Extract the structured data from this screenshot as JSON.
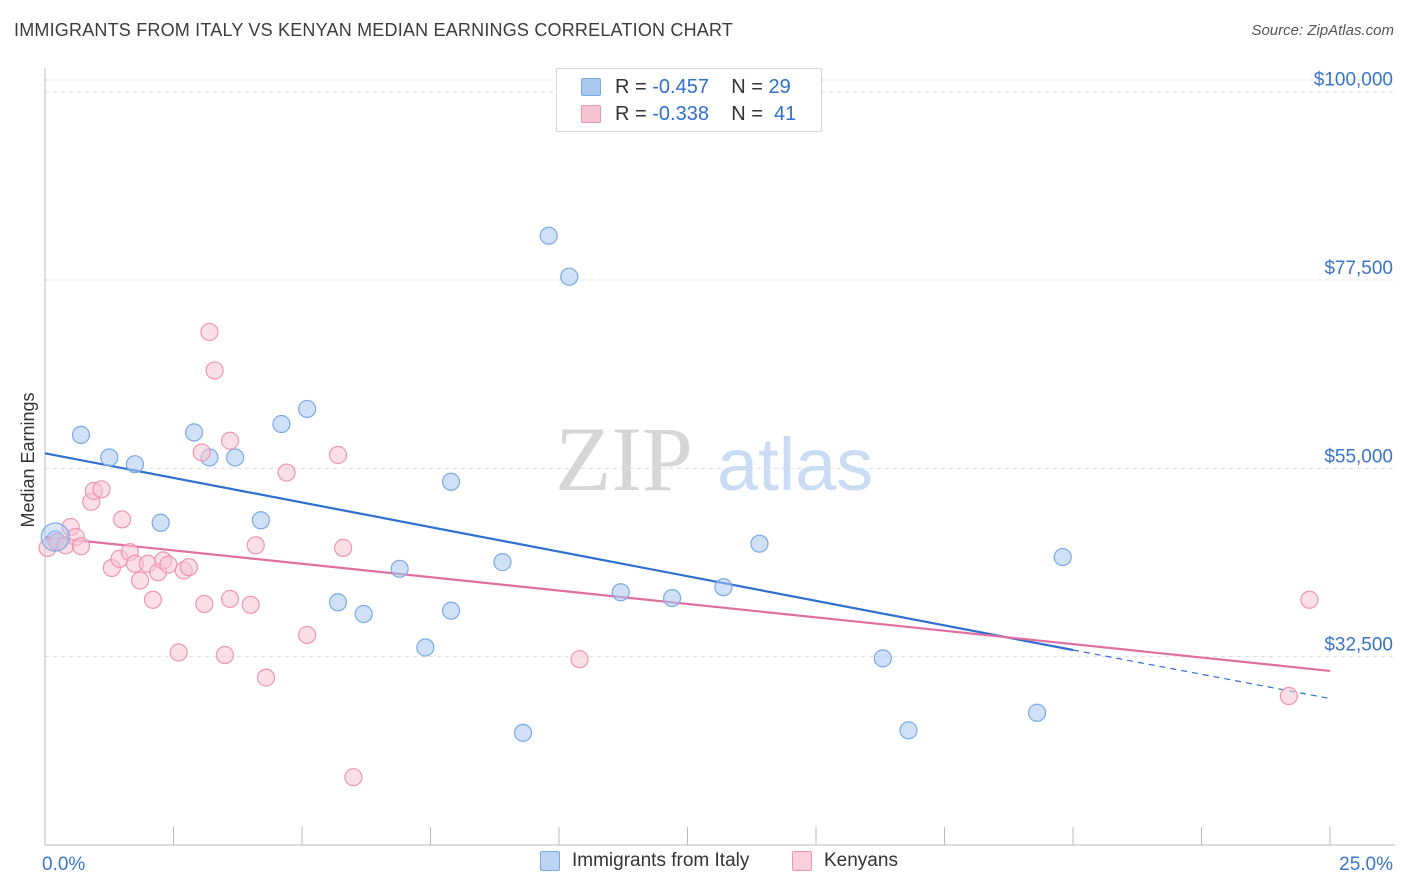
{
  "header": {
    "title": "IMMIGRANTS FROM ITALY VS KENYAN MEDIAN EARNINGS CORRELATION CHART",
    "source": "Source: ZipAtlas.com"
  },
  "watermark": {
    "zip": "ZIP",
    "atlas": "atlas"
  },
  "legend": {
    "rows": [
      {
        "r_label": "R =",
        "r_value": "-0.457",
        "n_label": "N =",
        "n_value": "29",
        "color": "#aac8f0",
        "border": "#7aaae4"
      },
      {
        "r_label": "R =",
        "r_value": "-0.338",
        "n_label": "N =",
        "n_value": "41",
        "color": "#f8c4d4",
        "border": "#ee95b2"
      }
    ]
  },
  "bottom_legend": {
    "items": [
      {
        "label": "Immigrants from Italy",
        "color": "#bcd4f4",
        "border": "#7aaae4"
      },
      {
        "label": "Kenyans",
        "color": "#fbd0dc",
        "border": "#ee95b2"
      }
    ]
  },
  "chart_data": {
    "type": "scatter",
    "title": "IMMIGRANTS FROM ITALY VS KENYAN MEDIAN EARNINGS CORRELATION CHART",
    "xlabel": "",
    "ylabel": "Median Earnings",
    "xlim": [
      0,
      25
    ],
    "ylim": [
      10000,
      102000
    ],
    "x_tick_labels": [
      "0.0%",
      "25.0%"
    ],
    "y_ticks": [
      32500,
      55000,
      77500,
      100000
    ],
    "y_tick_labels": [
      "$32,500",
      "$55,000",
      "$77,500",
      "$100,000"
    ],
    "grid": "horizontal dashed",
    "series": [
      {
        "name": "Immigrants from Italy",
        "color": "#aac8f0",
        "stroke": "#7aaae4",
        "line_color": "#2f6fd0",
        "points": [
          [
            0.2,
            46500
          ],
          [
            0.7,
            59000
          ],
          [
            1.25,
            56300
          ],
          [
            1.75,
            55500
          ],
          [
            2.25,
            48500
          ],
          [
            2.9,
            59300
          ],
          [
            3.2,
            56300
          ],
          [
            3.7,
            56300
          ],
          [
            4.2,
            48800
          ],
          [
            4.6,
            60300
          ],
          [
            5.1,
            62100
          ],
          [
            5.7,
            39000
          ],
          [
            6.2,
            37600
          ],
          [
            6.9,
            43000
          ],
          [
            7.4,
            33600
          ],
          [
            7.9,
            38000
          ],
          [
            7.9,
            53400
          ],
          [
            8.9,
            43800
          ],
          [
            9.3,
            23400
          ],
          [
            9.8,
            82800
          ],
          [
            10.2,
            77900
          ],
          [
            11.2,
            40200
          ],
          [
            12.2,
            39500
          ],
          [
            13.2,
            40800
          ],
          [
            13.9,
            46000
          ],
          [
            16.3,
            32300
          ],
          [
            16.8,
            23700
          ],
          [
            19.3,
            25800
          ],
          [
            19.8,
            44400
          ]
        ],
        "trend": {
          "x": [
            0,
            20
          ],
          "y": [
            56800,
            33300
          ]
        },
        "trend_extension": {
          "x": [
            20,
            25
          ],
          "y": [
            33300,
            27500
          ]
        }
      },
      {
        "name": "Kenyans",
        "color": "#f8c4d4",
        "stroke": "#ee95b2",
        "line_color": "#e06fa0",
        "points": [
          [
            0.05,
            45500
          ],
          [
            0.25,
            46200
          ],
          [
            0.4,
            45800
          ],
          [
            0.5,
            48000
          ],
          [
            0.6,
            46800
          ],
          [
            0.7,
            45700
          ],
          [
            0.9,
            51000
          ],
          [
            0.95,
            52300
          ],
          [
            1.1,
            52500
          ],
          [
            1.3,
            43100
          ],
          [
            1.45,
            44200
          ],
          [
            1.5,
            48900
          ],
          [
            1.65,
            45000
          ],
          [
            1.75,
            43600
          ],
          [
            1.85,
            41600
          ],
          [
            2.0,
            43600
          ],
          [
            2.1,
            39300
          ],
          [
            2.2,
            42600
          ],
          [
            2.3,
            44000
          ],
          [
            2.4,
            43500
          ],
          [
            2.6,
            33000
          ],
          [
            2.7,
            42800
          ],
          [
            2.8,
            43200
          ],
          [
            3.05,
            56900
          ],
          [
            3.1,
            38800
          ],
          [
            3.2,
            71300
          ],
          [
            3.3,
            66700
          ],
          [
            3.5,
            32700
          ],
          [
            3.6,
            39400
          ],
          [
            3.6,
            58300
          ],
          [
            4.0,
            38700
          ],
          [
            4.1,
            45800
          ],
          [
            4.3,
            30000
          ],
          [
            4.7,
            54500
          ],
          [
            5.1,
            35100
          ],
          [
            5.7,
            56600
          ],
          [
            5.8,
            45500
          ],
          [
            6.0,
            18100
          ],
          [
            10.4,
            32200
          ],
          [
            24.2,
            27800
          ],
          [
            24.6,
            39300
          ]
        ],
        "trend": {
          "x": [
            0,
            25
          ],
          "y": [
            46800,
            30800
          ]
        }
      }
    ]
  }
}
